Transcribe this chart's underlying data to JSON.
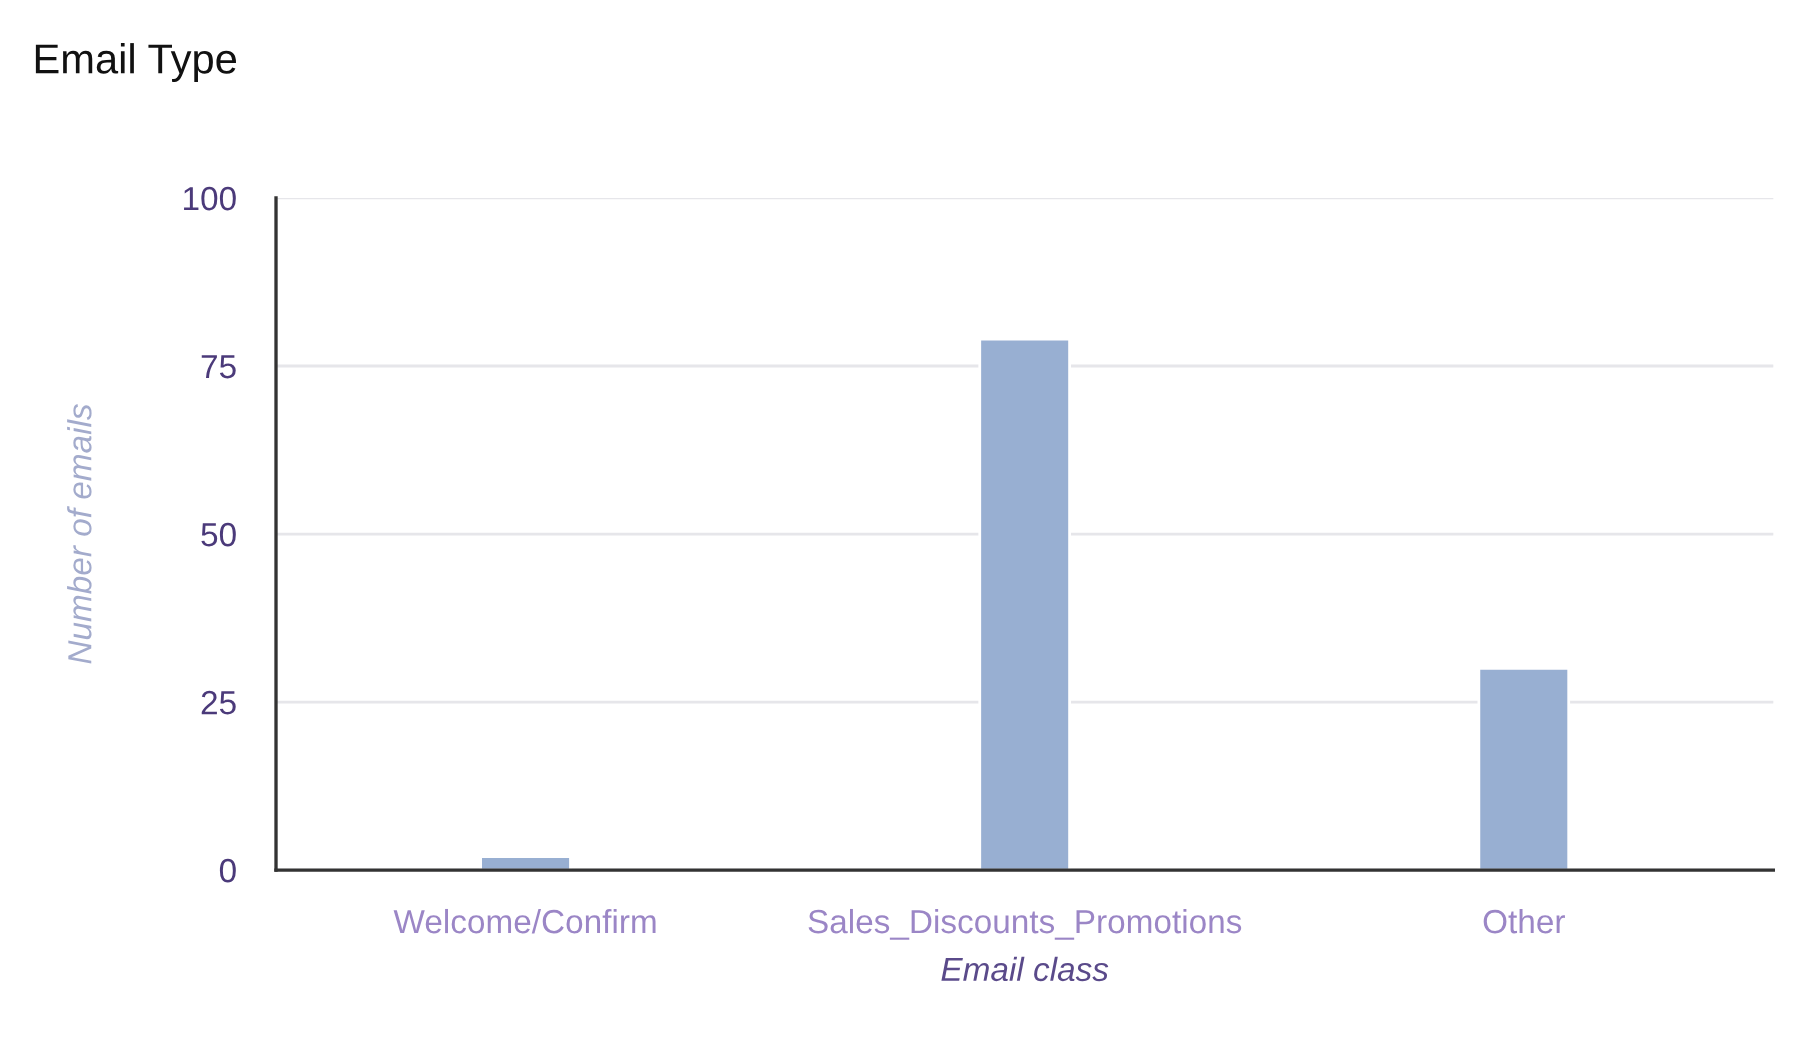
{
  "chart_data": {
    "type": "bar",
    "title": "Email Type",
    "xlabel": "Email class",
    "ylabel": "Number of emails",
    "categories": [
      "Welcome/Confirm",
      "Sales_Discounts_Promotions",
      "Other"
    ],
    "series": [
      {
        "color": "#98afd2",
        "values": [
          2,
          79,
          30
        ]
      }
    ],
    "ylim": [
      0,
      100
    ],
    "yticks": [
      0,
      25,
      50,
      75,
      100
    ],
    "grid": "y"
  }
}
